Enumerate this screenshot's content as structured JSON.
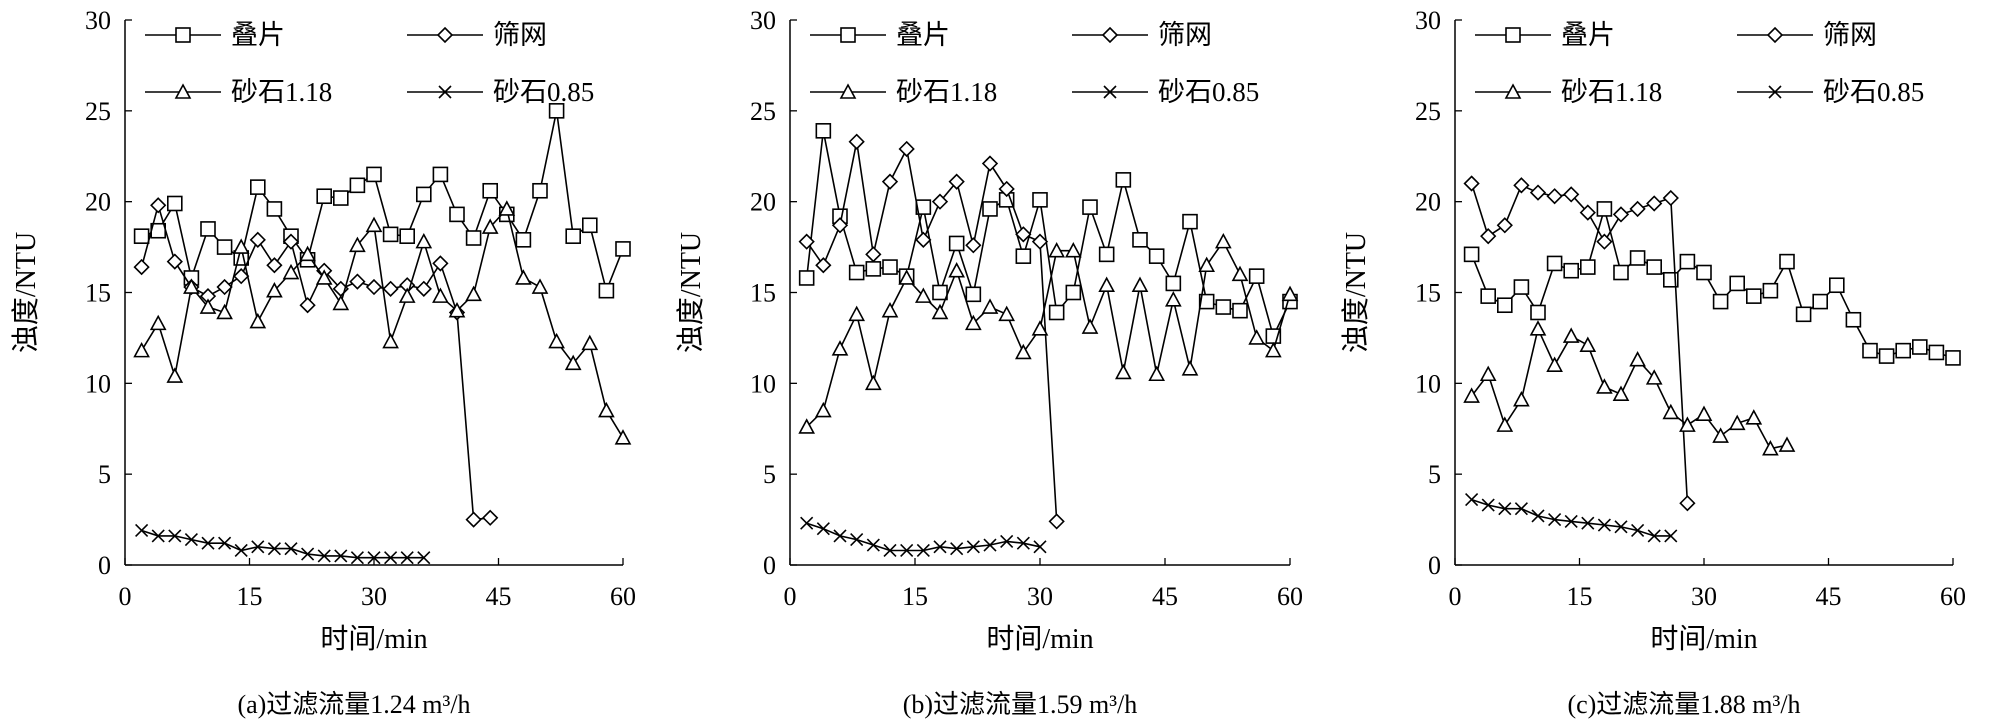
{
  "chart_data": [
    {
      "type": "line",
      "caption": "(a)过滤流量1.24 m³/h",
      "xlabel": "时间/min",
      "ylabel": "浊度/NTU",
      "xlim": [
        0,
        60
      ],
      "ylim": [
        0,
        30
      ],
      "xticks": [
        0,
        15,
        30,
        45,
        60
      ],
      "yticks": [
        0,
        5,
        10,
        15,
        20,
        25,
        30
      ],
      "legend_position": "top",
      "series": [
        {
          "name": "叠片",
          "marker": "square",
          "x": [
            2,
            4,
            6,
            8,
            10,
            12,
            14,
            16,
            18,
            20,
            22,
            24,
            26,
            28,
            30,
            32,
            34,
            36,
            38,
            40,
            42,
            44,
            46,
            48,
            50,
            52,
            54,
            56,
            58,
            60
          ],
          "y": [
            18.1,
            18.4,
            19.9,
            15.8,
            18.5,
            17.5,
            16.9,
            20.8,
            19.6,
            18.1,
            16.8,
            20.3,
            20.2,
            20.9,
            21.5,
            18.2,
            18.1,
            20.4,
            21.5,
            19.3,
            18.0,
            20.6,
            19.3,
            17.9,
            20.6,
            25.0,
            18.1,
            18.7,
            15.1,
            17.4
          ]
        },
        {
          "name": "筛网",
          "marker": "diamond",
          "x": [
            2,
            4,
            6,
            8,
            10,
            12,
            14,
            16,
            18,
            20,
            22,
            24,
            26,
            28,
            30,
            32,
            34,
            36,
            38,
            40,
            42,
            44
          ],
          "y": [
            16.4,
            19.8,
            16.7,
            15.3,
            14.8,
            15.3,
            15.9,
            17.9,
            16.5,
            17.8,
            14.3,
            16.2,
            15.2,
            15.6,
            15.3,
            15.2,
            15.4,
            15.2,
            16.6,
            13.9,
            2.5,
            2.6
          ]
        },
        {
          "name": "砂石1.18",
          "marker": "triangle",
          "x": [
            2,
            4,
            6,
            8,
            10,
            12,
            14,
            16,
            18,
            20,
            22,
            24,
            26,
            28,
            30,
            32,
            34,
            36,
            38,
            40,
            42,
            44,
            46,
            48,
            50,
            52,
            54,
            56,
            58,
            60
          ],
          "y": [
            11.8,
            13.3,
            10.4,
            15.3,
            14.2,
            13.9,
            17.5,
            13.4,
            15.1,
            16.1,
            17.1,
            15.8,
            14.4,
            17.6,
            18.7,
            12.3,
            14.8,
            17.8,
            14.8,
            14.0,
            14.9,
            18.6,
            19.6,
            15.8,
            15.3,
            12.3,
            11.1,
            12.2,
            8.5,
            7.0
          ]
        },
        {
          "name": "砂石0.85",
          "marker": "cross",
          "x": [
            2,
            4,
            6,
            8,
            10,
            12,
            14,
            16,
            18,
            20,
            22,
            24,
            26,
            28,
            30,
            32,
            34,
            36
          ],
          "y": [
            1.9,
            1.6,
            1.6,
            1.4,
            1.2,
            1.2,
            0.8,
            1.0,
            0.9,
            0.9,
            0.6,
            0.5,
            0.5,
            0.4,
            0.4,
            0.4,
            0.4,
            0.4
          ]
        }
      ]
    },
    {
      "type": "line",
      "caption": "(b)过滤流量1.59 m³/h",
      "xlabel": "时间/min",
      "ylabel": "浊度/NTU",
      "xlim": [
        0,
        60
      ],
      "ylim": [
        0,
        30
      ],
      "xticks": [
        0,
        15,
        30,
        45,
        60
      ],
      "yticks": [
        0,
        5,
        10,
        15,
        20,
        25,
        30
      ],
      "legend_position": "top",
      "series": [
        {
          "name": "叠片",
          "marker": "square",
          "x": [
            2,
            4,
            6,
            8,
            10,
            12,
            14,
            16,
            18,
            20,
            22,
            24,
            26,
            28,
            30,
            32,
            34,
            36,
            38,
            40,
            42,
            44,
            46,
            48,
            50,
            52,
            54,
            56,
            58,
            60
          ],
          "y": [
            15.8,
            23.9,
            19.2,
            16.1,
            16.3,
            16.4,
            15.9,
            19.7,
            15.0,
            17.7,
            14.9,
            19.6,
            20.1,
            17.0,
            20.1,
            13.9,
            15.0,
            19.7,
            17.1,
            21.2,
            17.9,
            17.0,
            15.5,
            18.9,
            14.5,
            14.2,
            14.0,
            15.9,
            12.6,
            14.5
          ]
        },
        {
          "name": "筛网",
          "marker": "diamond",
          "x": [
            2,
            4,
            6,
            8,
            10,
            12,
            14,
            16,
            18,
            20,
            22,
            24,
            26,
            28,
            30,
            32
          ],
          "y": [
            17.8,
            16.5,
            18.7,
            23.3,
            17.1,
            21.1,
            22.9,
            17.9,
            20.0,
            21.1,
            17.6,
            22.1,
            20.7,
            18.2,
            17.8,
            2.4
          ]
        },
        {
          "name": "砂石1.18",
          "marker": "triangle",
          "x": [
            2,
            4,
            6,
            8,
            10,
            12,
            14,
            16,
            18,
            20,
            22,
            24,
            26,
            28,
            30,
            32,
            34,
            36,
            38,
            40,
            42,
            44,
            46,
            48,
            50,
            52,
            54,
            56,
            58,
            60
          ],
          "y": [
            7.6,
            8.5,
            11.9,
            13.8,
            10.0,
            14.0,
            15.8,
            14.8,
            13.9,
            16.2,
            13.3,
            14.2,
            13.8,
            11.7,
            13.0,
            17.3,
            17.3,
            13.1,
            15.4,
            10.6,
            15.4,
            10.5,
            14.6,
            10.8,
            16.5,
            17.8,
            16.0,
            12.5,
            11.8,
            14.9
          ]
        },
        {
          "name": "砂石0.85",
          "marker": "cross",
          "x": [
            2,
            4,
            6,
            8,
            10,
            12,
            14,
            16,
            18,
            20,
            22,
            24,
            26,
            28,
            30
          ],
          "y": [
            2.3,
            2.0,
            1.6,
            1.4,
            1.1,
            0.8,
            0.8,
            0.8,
            1.0,
            0.9,
            1.0,
            1.1,
            1.3,
            1.2,
            1.0
          ]
        }
      ]
    },
    {
      "type": "line",
      "caption": "(c)过滤流量1.88 m³/h",
      "xlabel": "时间/min",
      "ylabel": "浊度/NTU",
      "xlim": [
        0,
        60
      ],
      "ylim": [
        0,
        30
      ],
      "xticks": [
        0,
        15,
        30,
        45,
        60
      ],
      "yticks": [
        0,
        5,
        10,
        15,
        20,
        25,
        30
      ],
      "legend_position": "top",
      "series": [
        {
          "name": "叠片",
          "marker": "square",
          "x": [
            2,
            4,
            6,
            8,
            10,
            12,
            14,
            16,
            18,
            20,
            22,
            24,
            26,
            28,
            30,
            32,
            34,
            36,
            38,
            40,
            42,
            44,
            46,
            48,
            50,
            52,
            54,
            56,
            58,
            60
          ],
          "y": [
            17.1,
            14.8,
            14.3,
            15.3,
            13.9,
            16.6,
            16.2,
            16.4,
            19.6,
            16.1,
            16.9,
            16.4,
            15.7,
            16.7,
            16.1,
            14.5,
            15.5,
            14.8,
            15.1,
            16.7,
            13.8,
            14.5,
            15.4,
            13.5,
            11.8,
            11.5,
            11.8,
            12.0,
            11.7,
            11.4
          ]
        },
        {
          "name": "筛网",
          "marker": "diamond",
          "x": [
            2,
            4,
            6,
            8,
            10,
            12,
            14,
            16,
            18,
            20,
            22,
            24,
            26,
            28
          ],
          "y": [
            21.0,
            18.1,
            18.7,
            20.9,
            20.5,
            20.3,
            20.4,
            19.4,
            17.8,
            19.3,
            19.6,
            19.9,
            20.2,
            3.4
          ]
        },
        {
          "name": "砂石1.18",
          "marker": "triangle",
          "x": [
            2,
            4,
            6,
            8,
            10,
            12,
            14,
            16,
            18,
            20,
            22,
            24,
            26,
            28,
            30,
            32,
            34,
            36,
            38,
            40
          ],
          "y": [
            9.3,
            10.5,
            7.7,
            9.1,
            13.0,
            11.0,
            12.6,
            12.1,
            9.8,
            9.4,
            11.3,
            10.3,
            8.4,
            7.7,
            8.3,
            7.1,
            7.8,
            8.1,
            6.4,
            6.6
          ]
        },
        {
          "name": "砂石0.85",
          "marker": "cross",
          "x": [
            2,
            4,
            6,
            8,
            10,
            12,
            14,
            16,
            18,
            20,
            22,
            24,
            26
          ],
          "y": [
            3.6,
            3.3,
            3.1,
            3.1,
            2.7,
            2.5,
            2.4,
            2.3,
            2.2,
            2.1,
            1.9,
            1.6,
            1.6
          ]
        }
      ]
    }
  ]
}
